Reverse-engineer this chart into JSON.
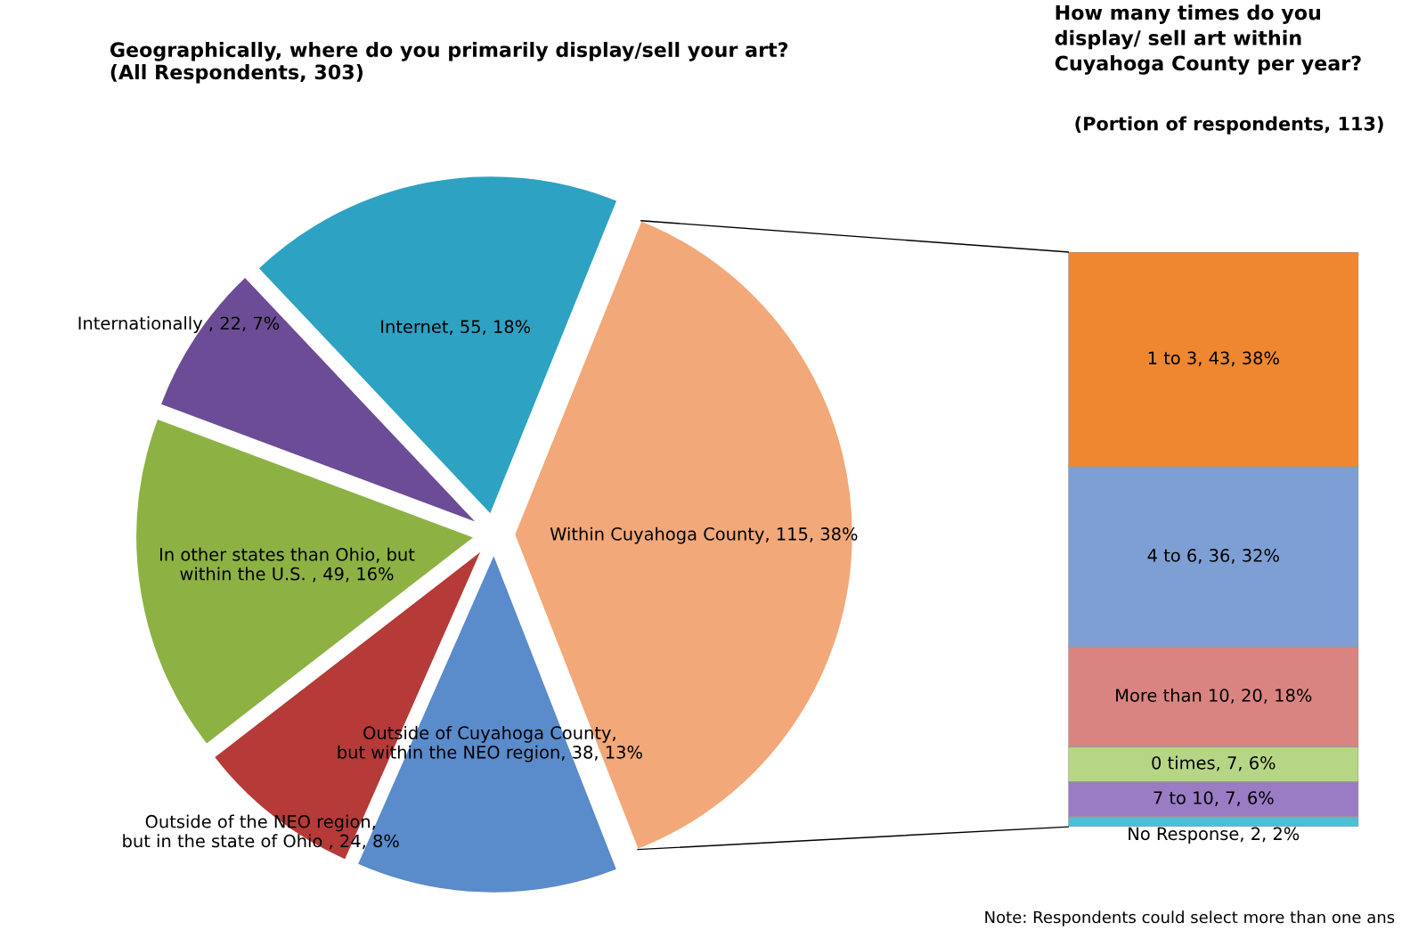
{
  "chart_data": [
    {
      "type": "pie",
      "title": "Geographically, where do you primarily display/sell your art?\n(All Respondents, 303)",
      "categories": [
        "Within Cuyahoga County",
        "Outside of Cuyahoga County,\nbut within the NEO region",
        "Outside of the NEO region,\nbut in the state of Ohio ",
        "In other states than Ohio, but\nwithin the U.S. ",
        "Internationally ",
        "Internet"
      ],
      "values": [
        115,
        38,
        24,
        49,
        22,
        55
      ],
      "value_labels": [
        "115, 38%",
        "38, 13%",
        "24, 8%",
        "49, 16%",
        "22, 7%",
        "55, 18%"
      ],
      "colors": [
        "#f2a878",
        "#5a8bcb",
        "#b53a38",
        "#8db243",
        "#6c4c96",
        "#2ea2c3"
      ],
      "legend": false
    },
    {
      "type": "bar",
      "stacked": true,
      "title": "How many times do you\ndisplay/ sell art within\nCuyahoga County per year?",
      "subtitle": "(Portion of respondents, 113)",
      "categories": [
        null
      ],
      "series": [
        {
          "color": "#4bc0d8",
          "values": [
            2
          ],
          "value_labels": [
            "No Response, 2, 2%"
          ]
        },
        {
          "color": "#9a7cc4",
          "values": [
            7
          ],
          "value_labels": [
            "7 to 10, 7, 6%"
          ]
        },
        {
          "color": "#b7d685",
          "values": [
            7
          ],
          "value_labels": [
            "0 times, 7, 6%"
          ]
        },
        {
          "color": "#d98480",
          "values": [
            20
          ],
          "value_labels": [
            "More than 10, 20, 18%"
          ]
        },
        {
          "color": "#7d9fd4",
          "values": [
            36
          ],
          "value_labels": [
            "4 to 6, 36, 32%"
          ]
        },
        {
          "color": "#ee8730",
          "values": [
            43
          ],
          "value_labels": [
            "1 to 3, 43, 38%"
          ]
        }
      ],
      "legend": false,
      "annotations": [
        "Note: Respondents could select more than one ans"
      ]
    }
  ]
}
